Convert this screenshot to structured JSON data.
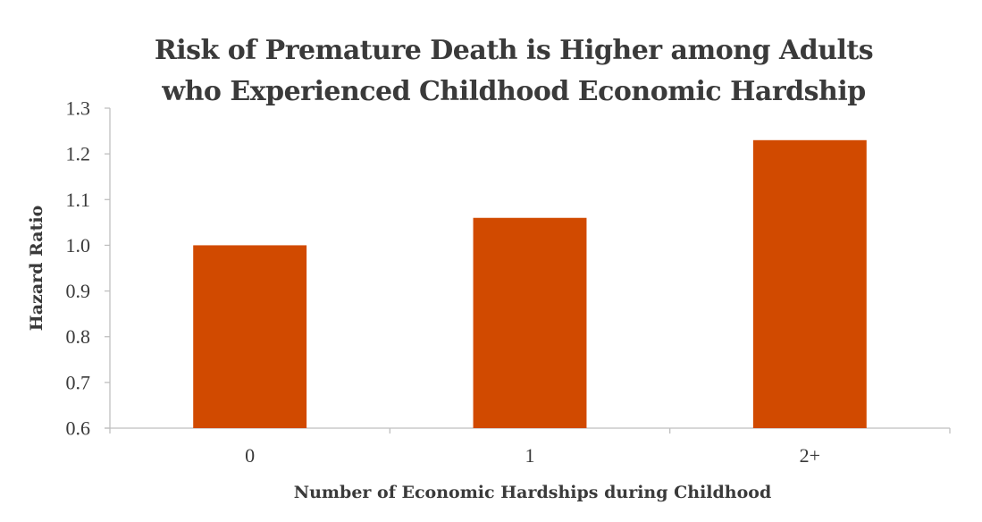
{
  "chart_data": {
    "type": "bar",
    "title_lines": [
      "Risk of Premature Death is Higher among Adults",
      "who Experienced Childhood Economic Hardship"
    ],
    "xlabel": "Number of Economic Hardships during Childhood",
    "ylabel": "Hazard Ratio",
    "categories": [
      "0",
      "1",
      "2+"
    ],
    "values": [
      1.0,
      1.06,
      1.23
    ],
    "ylim": [
      0.6,
      1.3
    ],
    "yticks": [
      "0.6",
      "0.7",
      "0.8",
      "0.9",
      "1.0",
      "1.1",
      "1.2",
      "1.3"
    ],
    "bar_color": "#d14a00",
    "axis_color": "#bfbfbf",
    "grid": false,
    "legend": "none"
  }
}
